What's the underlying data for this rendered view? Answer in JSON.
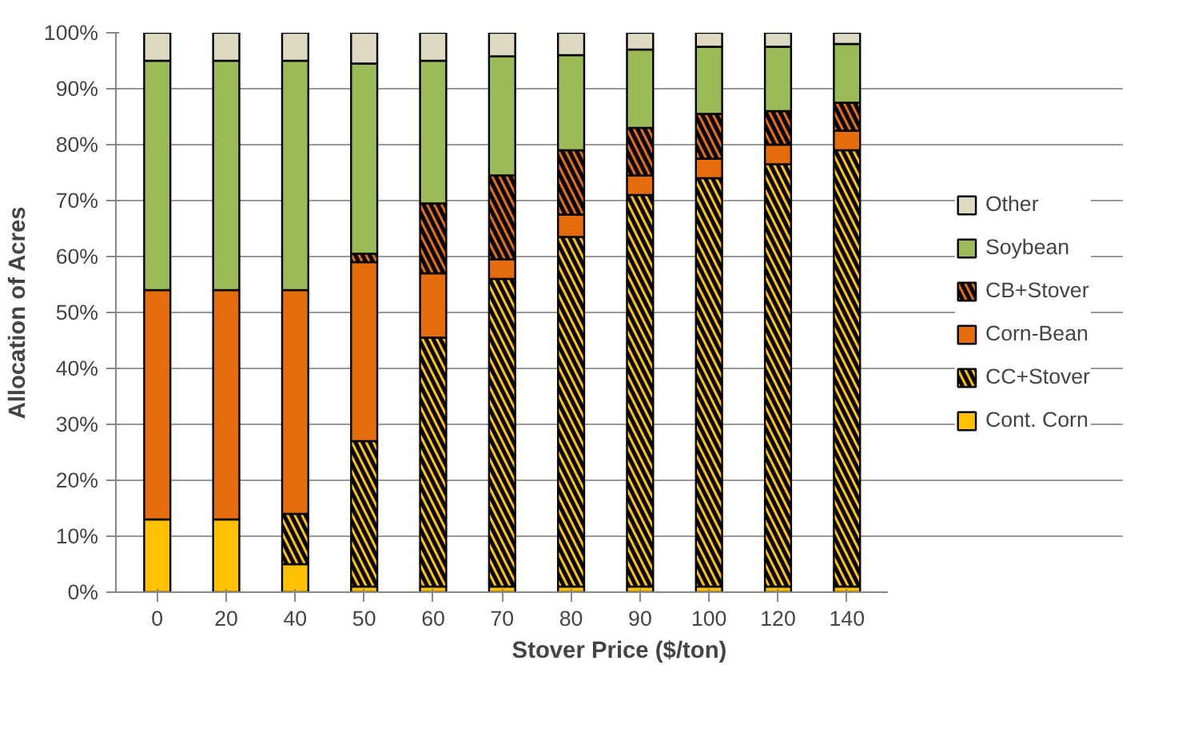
{
  "chart_data": {
    "type": "bar",
    "stacked": true,
    "xlabel": "Stover Price ($/ton)",
    "ylabel": "Allocation of Acres",
    "categories": [
      "0",
      "20",
      "40",
      "50",
      "60",
      "70",
      "80",
      "90",
      "100",
      "120",
      "140"
    ],
    "ylim": [
      0,
      100
    ],
    "yticks": [
      {
        "value": 0,
        "label": "0%"
      },
      {
        "value": 10,
        "label": "10%"
      },
      {
        "value": 20,
        "label": "20%"
      },
      {
        "value": 30,
        "label": "30%"
      },
      {
        "value": 40,
        "label": "40%"
      },
      {
        "value": 50,
        "label": "50%"
      },
      {
        "value": 60,
        "label": "60%"
      },
      {
        "value": 70,
        "label": "70%"
      },
      {
        "value": 80,
        "label": "80%"
      },
      {
        "value": 90,
        "label": "90%"
      },
      {
        "value": 100,
        "label": "100%"
      }
    ],
    "grid": "y",
    "legend": "right",
    "series": [
      {
        "name": "Cont. Corn",
        "color": "#ffc000",
        "values": [
          13,
          13,
          5,
          1,
          1,
          1,
          1,
          1,
          1,
          1,
          1
        ]
      },
      {
        "name": "CC+Stover",
        "color": "#ffc000",
        "values": [
          0,
          0,
          9,
          26,
          44.5,
          55,
          62.5,
          70,
          73,
          75.5,
          78
        ]
      },
      {
        "name": "Corn-Bean",
        "color": "#e46c0a",
        "values": [
          41,
          41,
          40,
          32,
          11.5,
          3.5,
          4,
          3.5,
          3.5,
          3.5,
          3.5
        ]
      },
      {
        "name": "CB+Stover",
        "color": "#e46c0a",
        "values": [
          0,
          0,
          0,
          1.5,
          12.5,
          15,
          11.5,
          8.5,
          8,
          6,
          5
        ]
      },
      {
        "name": "Soybean",
        "color": "#9bbb59",
        "values": [
          41,
          41,
          41,
          34,
          25.5,
          21.3,
          17,
          14,
          12,
          11.5,
          10.5
        ]
      },
      {
        "name": "Other",
        "color": "#ddd9c3",
        "values": [
          5,
          5,
          5,
          5.5,
          5,
          4.2,
          4,
          3,
          2.5,
          2.5,
          2
        ]
      }
    ]
  }
}
